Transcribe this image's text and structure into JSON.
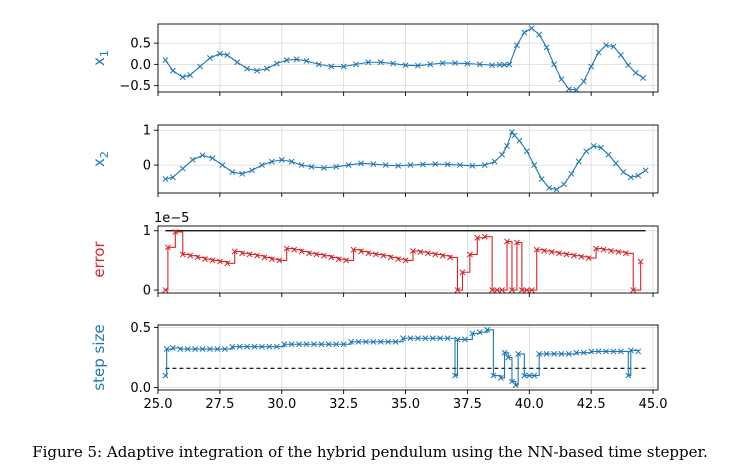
{
  "caption": "Figure 5: Adaptive integration of the hybrid pendulum using the NN-based time stepper.",
  "colors": {
    "blue": "#1f77b4",
    "red": "#d62728",
    "black": "#000000"
  },
  "chart_data": [
    {
      "type": "line",
      "ylabel": "x₁",
      "ylabel_main": "x",
      "ylabel_sub": "1",
      "ylim": [
        -0.65,
        0.95
      ],
      "xlim": [
        25.0,
        45.2
      ],
      "yticks": [
        0.5,
        0.0,
        -0.5
      ],
      "ytick_labels": [
        "0.5",
        "0.0",
        "−0.5"
      ],
      "grid": true,
      "series": [
        {
          "color": "#1f77b4",
          "marker": "x",
          "step": false,
          "x": [
            25.3,
            25.6,
            26.0,
            26.3,
            26.7,
            27.1,
            27.5,
            27.8,
            28.2,
            28.6,
            29.0,
            29.4,
            29.8,
            30.2,
            30.6,
            31.0,
            31.5,
            32.0,
            32.5,
            33.0,
            33.5,
            34.0,
            34.5,
            35.0,
            35.5,
            36.0,
            36.5,
            37.0,
            37.5,
            38.0,
            38.5,
            38.8,
            39.0,
            39.2,
            39.5,
            39.8,
            40.1,
            40.4,
            40.7,
            41.0,
            41.3,
            41.6,
            41.9,
            42.2,
            42.5,
            42.8,
            43.1,
            43.4,
            43.7,
            44.0,
            44.3,
            44.6
          ],
          "y": [
            0.1,
            -0.15,
            -0.3,
            -0.25,
            -0.05,
            0.15,
            0.25,
            0.22,
            0.05,
            -0.1,
            -0.15,
            -0.1,
            0.02,
            0.1,
            0.12,
            0.08,
            0.0,
            -0.05,
            -0.05,
            0.0,
            0.05,
            0.05,
            0.02,
            -0.02,
            -0.03,
            0.0,
            0.03,
            0.03,
            0.02,
            0.0,
            -0.02,
            -0.01,
            -0.01,
            0.0,
            0.45,
            0.75,
            0.85,
            0.7,
            0.4,
            0.0,
            -0.35,
            -0.58,
            -0.6,
            -0.4,
            -0.05,
            0.28,
            0.45,
            0.42,
            0.22,
            -0.02,
            -0.2,
            -0.32
          ]
        }
      ]
    },
    {
      "type": "line",
      "ylabel": "x₂",
      "ylabel_main": "x",
      "ylabel_sub": "2",
      "ylim": [
        -0.8,
        1.15
      ],
      "xlim": [
        25.0,
        45.2
      ],
      "yticks": [
        1,
        0
      ],
      "ytick_labels": [
        "1",
        "0"
      ],
      "grid": true,
      "series": [
        {
          "color": "#1f77b4",
          "marker": "x",
          "step": false,
          "x": [
            25.3,
            25.6,
            26.0,
            26.4,
            26.8,
            27.2,
            27.6,
            28.0,
            28.4,
            28.8,
            29.2,
            29.6,
            30.0,
            30.4,
            30.8,
            31.2,
            31.7,
            32.2,
            32.7,
            33.2,
            33.7,
            34.2,
            34.7,
            35.2,
            35.7,
            36.2,
            36.7,
            37.2,
            37.7,
            38.2,
            38.6,
            38.9,
            39.1,
            39.3,
            39.4,
            39.6,
            39.9,
            40.2,
            40.5,
            40.8,
            41.1,
            41.4,
            41.7,
            42.0,
            42.3,
            42.6,
            42.9,
            43.2,
            43.5,
            43.8,
            44.1,
            44.4,
            44.7
          ],
          "y": [
            -0.4,
            -0.35,
            -0.1,
            0.15,
            0.28,
            0.2,
            0.0,
            -0.2,
            -0.25,
            -0.15,
            0.0,
            0.1,
            0.15,
            0.1,
            0.0,
            -0.05,
            -0.08,
            -0.05,
            0.0,
            0.05,
            0.03,
            0.0,
            -0.02,
            0.0,
            0.02,
            0.03,
            0.02,
            0.0,
            -0.02,
            0.0,
            0.1,
            0.3,
            0.55,
            0.95,
            0.85,
            0.7,
            0.4,
            0.0,
            -0.4,
            -0.65,
            -0.7,
            -0.55,
            -0.25,
            0.1,
            0.4,
            0.55,
            0.5,
            0.3,
            0.05,
            -0.2,
            -0.35,
            -0.3,
            -0.15
          ]
        }
      ]
    },
    {
      "type": "line",
      "ylabel": "error",
      "ylim": [
        -0.05,
        1.08
      ],
      "xlim": [
        25.0,
        45.2
      ],
      "yticks": [
        1,
        0
      ],
      "ytick_labels": [
        "1",
        "0"
      ],
      "offset_text": "1e−5",
      "grid": true,
      "reference_line": {
        "y": 1.0,
        "style": "solid",
        "color": "#000000",
        "x": [
          25.3,
          44.7
        ]
      },
      "series": [
        {
          "color": "#d62728",
          "marker": "x",
          "step": true,
          "x": [
            25.3,
            25.4,
            25.7,
            26.0,
            26.3,
            26.6,
            26.9,
            27.2,
            27.5,
            27.8,
            28.1,
            28.4,
            28.7,
            29.0,
            29.3,
            29.6,
            29.9,
            30.2,
            30.5,
            30.8,
            31.1,
            31.4,
            31.7,
            32.0,
            32.3,
            32.6,
            32.9,
            33.2,
            33.5,
            33.8,
            34.1,
            34.4,
            34.7,
            35.0,
            35.3,
            35.6,
            35.9,
            36.2,
            36.5,
            36.8,
            37.1,
            37.3,
            37.6,
            37.9,
            38.2,
            38.5,
            38.7,
            38.9,
            39.1,
            39.3,
            39.5,
            39.7,
            39.9,
            40.1,
            40.3,
            40.6,
            40.9,
            41.2,
            41.5,
            41.8,
            42.1,
            42.4,
            42.7,
            43.0,
            43.3,
            43.6,
            43.9,
            44.2,
            44.5
          ],
          "y": [
            0.0,
            0.72,
            0.98,
            0.6,
            0.58,
            0.55,
            0.52,
            0.5,
            0.48,
            0.45,
            0.65,
            0.62,
            0.6,
            0.58,
            0.55,
            0.52,
            0.5,
            0.7,
            0.68,
            0.65,
            0.62,
            0.6,
            0.58,
            0.55,
            0.52,
            0.5,
            0.68,
            0.65,
            0.62,
            0.6,
            0.58,
            0.55,
            0.52,
            0.5,
            0.66,
            0.64,
            0.62,
            0.6,
            0.58,
            0.55,
            0.0,
            0.3,
            0.6,
            0.88,
            0.9,
            0.0,
            0.0,
            0.0,
            0.82,
            0.0,
            0.8,
            0.0,
            0.0,
            0.0,
            0.68,
            0.66,
            0.64,
            0.62,
            0.6,
            0.58,
            0.56,
            0.54,
            0.7,
            0.68,
            0.66,
            0.64,
            0.62,
            0.0,
            0.48
          ]
        }
      ]
    },
    {
      "type": "line",
      "ylabel": "step size",
      "xlabel": "",
      "ylim": [
        -0.02,
        0.52
      ],
      "xlim": [
        25.0,
        45.2
      ],
      "yticks": [
        0.5,
        0.0
      ],
      "ytick_labels": [
        "0.5",
        "0.0"
      ],
      "xticks": [
        25.0,
        27.5,
        30.0,
        32.5,
        35.0,
        37.5,
        40.0,
        42.5,
        45.0
      ],
      "xtick_labels": [
        "25.0",
        "27.5",
        "30.0",
        "32.5",
        "35.0",
        "37.5",
        "40.0",
        "42.5",
        "45.0"
      ],
      "grid": true,
      "reference_line": {
        "y": 0.16,
        "style": "dashed",
        "color": "#000000",
        "x": [
          25.3,
          44.7
        ]
      },
      "series": [
        {
          "color": "#1f77b4",
          "marker": "x",
          "step": true,
          "x": [
            25.3,
            25.35,
            25.6,
            25.9,
            26.2,
            26.5,
            26.8,
            27.1,
            27.4,
            27.7,
            28.0,
            28.3,
            28.6,
            28.9,
            29.2,
            29.5,
            29.8,
            30.1,
            30.4,
            30.7,
            31.0,
            31.3,
            31.6,
            31.9,
            32.2,
            32.5,
            32.8,
            33.1,
            33.4,
            33.7,
            34.0,
            34.3,
            34.6,
            34.9,
            35.2,
            35.5,
            35.8,
            36.1,
            36.4,
            36.7,
            37.0,
            37.1,
            37.4,
            37.7,
            38.0,
            38.3,
            38.55,
            38.85,
            39.0,
            39.15,
            39.3,
            39.45,
            39.55,
            39.8,
            40.0,
            40.2,
            40.4,
            40.7,
            41.0,
            41.3,
            41.6,
            41.9,
            42.2,
            42.5,
            42.8,
            43.1,
            43.4,
            43.7,
            44.0,
            44.1,
            44.4
          ],
          "y": [
            0.1,
            0.32,
            0.33,
            0.32,
            0.32,
            0.32,
            0.32,
            0.32,
            0.32,
            0.32,
            0.34,
            0.34,
            0.34,
            0.34,
            0.34,
            0.34,
            0.34,
            0.36,
            0.36,
            0.36,
            0.36,
            0.36,
            0.36,
            0.36,
            0.36,
            0.36,
            0.38,
            0.38,
            0.38,
            0.38,
            0.38,
            0.38,
            0.38,
            0.41,
            0.41,
            0.41,
            0.41,
            0.41,
            0.41,
            0.41,
            0.1,
            0.4,
            0.4,
            0.45,
            0.46,
            0.48,
            0.1,
            0.08,
            0.29,
            0.25,
            0.05,
            0.02,
            0.28,
            0.1,
            0.1,
            0.1,
            0.28,
            0.28,
            0.28,
            0.28,
            0.28,
            0.29,
            0.29,
            0.3,
            0.3,
            0.3,
            0.3,
            0.3,
            0.1,
            0.31,
            0.3
          ]
        }
      ]
    }
  ]
}
